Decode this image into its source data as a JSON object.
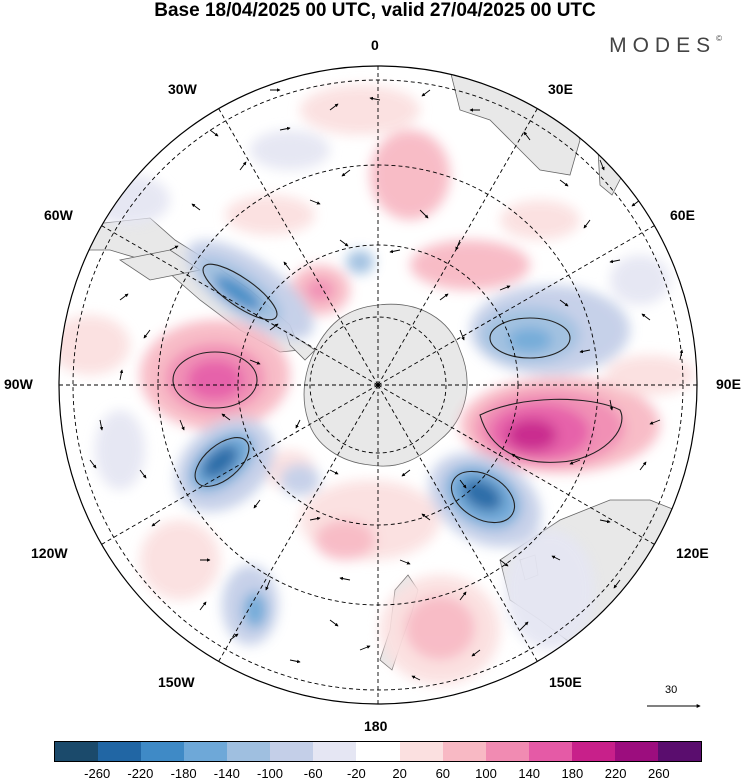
{
  "title": "Base 18/04/2025 00 UTC, valid 27/04/2025 00 UTC",
  "brand": "MODES",
  "brand_mark": "©",
  "map": {
    "projection": "south-polar-stereographic",
    "longitude_labels": {
      "lon_0": "0",
      "lon_30e": "30E",
      "lon_60e": "60E",
      "lon_90e": "90E",
      "lon_120e": "120E",
      "lon_150e": "150E",
      "lon_180": "180",
      "lon_150w": "150W",
      "lon_120w": "120W",
      "lon_90w": "90W",
      "lon_60w": "60W",
      "lon_30w": "30W"
    },
    "land_color": "#e8e8e8",
    "wind_reference_vector": "30"
  },
  "colorbar": {
    "ticks": [
      "-260",
      "-220",
      "-180",
      "-140",
      "-100",
      "-60",
      "-20",
      "20",
      "60",
      "100",
      "140",
      "180",
      "220",
      "260"
    ],
    "colors": [
      "#1b4a6b",
      "#2166a4",
      "#3f8ac6",
      "#6ea8d8",
      "#9fbfe0",
      "#c4cfe8",
      "#e5e6f3",
      "#ffffff",
      "#fbe0e0",
      "#f8b9c4",
      "#f18bb2",
      "#e55aa6",
      "#c8208a",
      "#9c0d7e",
      "#5a0d6e"
    ]
  }
}
